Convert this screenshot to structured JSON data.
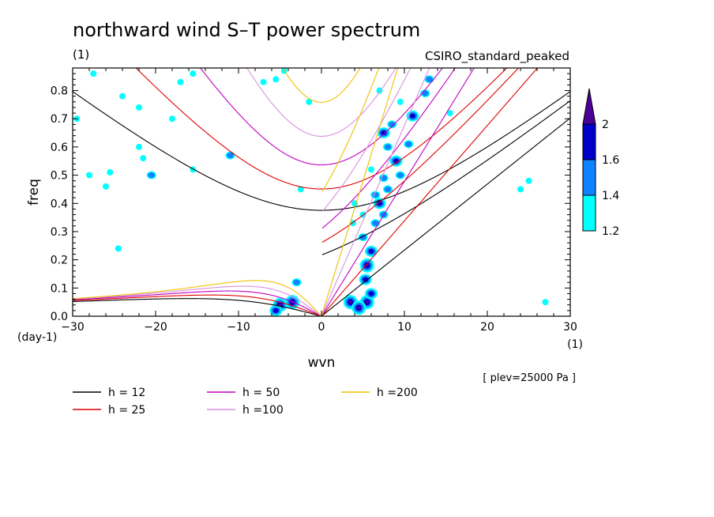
{
  "chart_data": {
    "type": "heatmap",
    "title": "northward wind S–T power spectrum",
    "subtitle_left": "(1)",
    "subtitle_right": "CSIRO_standard_peaked",
    "xlabel": "wvn",
    "ylabel": "freq",
    "x_unit": "(1)",
    "y_unit": "(day-1)",
    "note": "[ plev=25000 Pa ]",
    "xlim": [
      -30,
      30
    ],
    "ylim": [
      0,
      0.88
    ],
    "x_ticks": [
      -30,
      -20,
      -10,
      0,
      10,
      20,
      30
    ],
    "y_ticks": [
      0.0,
      0.1,
      0.2,
      0.3,
      0.4,
      0.5,
      0.6,
      0.7,
      0.8
    ],
    "colorbar": {
      "levels": [
        1.2,
        1.4,
        1.6,
        2
      ],
      "colors": [
        "#00ffff",
        "#0f82ff",
        "#0000c8",
        "#4b0096"
      ]
    },
    "dispersion_curves": [
      {
        "name": "h = 12",
        "equivalent_depth": 12,
        "color": "#000000"
      },
      {
        "name": "h = 25",
        "equivalent_depth": 25,
        "color": "#e00000"
      },
      {
        "name": "h = 50",
        "equivalent_depth": 50,
        "color": "#c000c0"
      },
      {
        "name": "h =100",
        "equivalent_depth": 100,
        "color": "#d890e0"
      },
      {
        "name": "h =200",
        "equivalent_depth": 200,
        "color": "#f0c000"
      }
    ],
    "patches": [
      {
        "wvn": -5.0,
        "freq": 0.04,
        "level": 4
      },
      {
        "wvn": -3.5,
        "freq": 0.05,
        "level": 4
      },
      {
        "wvn": -5.5,
        "freq": 0.02,
        "level": 3
      },
      {
        "wvn": -3.0,
        "freq": 0.12,
        "level": 2
      },
      {
        "wvn": 3.5,
        "freq": 0.05,
        "level": 4
      },
      {
        "wvn": 5.5,
        "freq": 0.05,
        "level": 4
      },
      {
        "wvn": 4.5,
        "freq": 0.03,
        "level": 4
      },
      {
        "wvn": 6.0,
        "freq": 0.08,
        "level": 3
      },
      {
        "wvn": 5.5,
        "freq": 0.18,
        "level": 4
      },
      {
        "wvn": 5.3,
        "freq": 0.13,
        "level": 3
      },
      {
        "wvn": 6.0,
        "freq": 0.23,
        "level": 3
      },
      {
        "wvn": 5.0,
        "freq": 0.28,
        "level": 2
      },
      {
        "wvn": 6.5,
        "freq": 0.33,
        "level": 2
      },
      {
        "wvn": 7.5,
        "freq": 0.36,
        "level": 2
      },
      {
        "wvn": 7.0,
        "freq": 0.4,
        "level": 3
      },
      {
        "wvn": 6.5,
        "freq": 0.43,
        "level": 2
      },
      {
        "wvn": 8.0,
        "freq": 0.45,
        "level": 2
      },
      {
        "wvn": 7.5,
        "freq": 0.49,
        "level": 2
      },
      {
        "wvn": 9.5,
        "freq": 0.5,
        "level": 2
      },
      {
        "wvn": 9.0,
        "freq": 0.55,
        "level": 3
      },
      {
        "wvn": 8.0,
        "freq": 0.6,
        "level": 2
      },
      {
        "wvn": 10.5,
        "freq": 0.61,
        "level": 2
      },
      {
        "wvn": 11.0,
        "freq": 0.71,
        "level": 3
      },
      {
        "wvn": 8.5,
        "freq": 0.68,
        "level": 2
      },
      {
        "wvn": 12.5,
        "freq": 0.79,
        "level": 2
      },
      {
        "wvn": 13.0,
        "freq": 0.84,
        "level": 2
      },
      {
        "wvn": 7.5,
        "freq": 0.65,
        "level": 3
      },
      {
        "wvn": 5.0,
        "freq": 0.36,
        "level": 1
      },
      {
        "wvn": 4.0,
        "freq": 0.4,
        "level": 1
      },
      {
        "wvn": 6.0,
        "freq": 0.52,
        "level": 1
      },
      {
        "wvn": 3.8,
        "freq": 0.33,
        "level": 1
      },
      {
        "wvn": 9.5,
        "freq": 0.76,
        "level": 1
      },
      {
        "wvn": 7.0,
        "freq": 0.8,
        "level": 1
      },
      {
        "wvn": -7.0,
        "freq": 0.83,
        "level": 1
      },
      {
        "wvn": -5.5,
        "freq": 0.84,
        "level": 1
      },
      {
        "wvn": -4.5,
        "freq": 0.87,
        "level": 1
      },
      {
        "wvn": -1.5,
        "freq": 0.76,
        "level": 1
      },
      {
        "wvn": -15.5,
        "freq": 0.86,
        "level": 1
      },
      {
        "wvn": -17.0,
        "freq": 0.83,
        "level": 1
      },
      {
        "wvn": -20.5,
        "freq": 0.5,
        "level": 2
      },
      {
        "wvn": -21.5,
        "freq": 0.56,
        "level": 1
      },
      {
        "wvn": -22.0,
        "freq": 0.6,
        "level": 1
      },
      {
        "wvn": -25.5,
        "freq": 0.51,
        "level": 1
      },
      {
        "wvn": -26.0,
        "freq": 0.46,
        "level": 1
      },
      {
        "wvn": -28.0,
        "freq": 0.5,
        "level": 1
      },
      {
        "wvn": -29.5,
        "freq": 0.7,
        "level": 1
      },
      {
        "wvn": -27.5,
        "freq": 0.86,
        "level": 1
      },
      {
        "wvn": -24.0,
        "freq": 0.78,
        "level": 1
      },
      {
        "wvn": -22.0,
        "freq": 0.74,
        "level": 1
      },
      {
        "wvn": -11.0,
        "freq": 0.57,
        "level": 2
      },
      {
        "wvn": -15.5,
        "freq": 0.52,
        "level": 1
      },
      {
        "wvn": -18.0,
        "freq": 0.7,
        "level": 1
      },
      {
        "wvn": -24.5,
        "freq": 0.24,
        "level": 1
      },
      {
        "wvn": -2.5,
        "freq": 0.45,
        "level": 1
      },
      {
        "wvn": 25.0,
        "freq": 0.48,
        "level": 1
      },
      {
        "wvn": 24.0,
        "freq": 0.45,
        "level": 1
      },
      {
        "wvn": 27.0,
        "freq": 0.05,
        "level": 1
      },
      {
        "wvn": 15.5,
        "freq": 0.72,
        "level": 1
      }
    ]
  }
}
